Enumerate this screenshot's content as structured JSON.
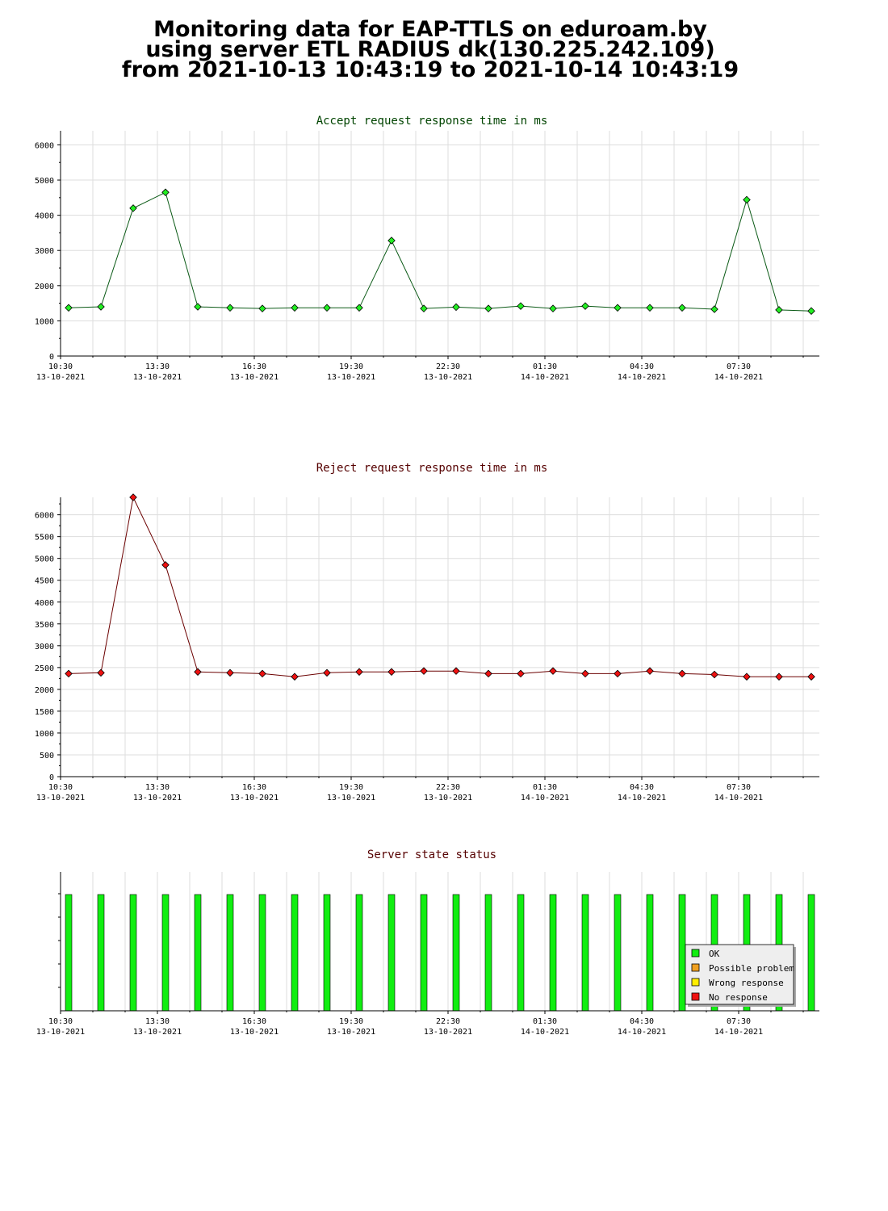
{
  "header": {
    "title_line1": "Monitoring data for EAP-TTLS on eduroam.by",
    "title_line2": "using server ETL RADIUS dk(130.225.242.109)",
    "title_line3": "from 2021-10-13 10:43:19 to 2021-10-14 10:43:19"
  },
  "colors": {
    "accept_line": "#0b5a16",
    "accept_marker": "#22ee22",
    "reject_line": "#6b0000",
    "reject_marker": "#ee1111",
    "accept_title": "#004400",
    "reject_title": "#550000",
    "grid": "#dddddd",
    "status_bar": "#11ee11"
  },
  "x_ticks": [
    {
      "time": "10:30",
      "date": "13-10-2021",
      "hour": 0
    },
    {
      "time": "13:30",
      "date": "13-10-2021",
      "hour": 3
    },
    {
      "time": "16:30",
      "date": "13-10-2021",
      "hour": 6
    },
    {
      "time": "19:30",
      "date": "13-10-2021",
      "hour": 9
    },
    {
      "time": "22:30",
      "date": "13-10-2021",
      "hour": 12
    },
    {
      "time": "01:30",
      "date": "14-10-2021",
      "hour": 15
    },
    {
      "time": "04:30",
      "date": "14-10-2021",
      "hour": 18
    },
    {
      "time": "07:30",
      "date": "14-10-2021",
      "hour": 21
    }
  ],
  "chart_data": [
    {
      "type": "line",
      "title": "Accept request response time in ms",
      "xlabel": "",
      "ylabel": "",
      "x_hours": [
        0.25,
        1.25,
        2.25,
        3.25,
        4.25,
        5.25,
        6.25,
        7.25,
        8.25,
        9.25,
        10.25,
        11.25,
        12.25,
        13.25,
        14.25,
        15.25,
        16.25,
        17.25,
        18.25,
        19.25,
        20.25,
        21.25,
        22.25,
        23.25
      ],
      "values": [
        1370,
        1400,
        4200,
        4650,
        1400,
        1370,
        1350,
        1370,
        1370,
        1370,
        3280,
        1350,
        1390,
        1350,
        1420,
        1350,
        1420,
        1370,
        1370,
        1370,
        1330,
        4440,
        1310,
        1280
      ],
      "ylim": [
        0,
        6400
      ],
      "yticks": [
        0,
        1000,
        2000,
        3000,
        4000,
        5000,
        6000
      ],
      "ytick_labels": [
        "0",
        "1000",
        "2000",
        "3000",
        "4000",
        "5000",
        "6000"
      ],
      "grid": true
    },
    {
      "type": "line",
      "title": "Reject request response time in ms",
      "xlabel": "",
      "ylabel": "",
      "x_hours": [
        0.25,
        1.25,
        2.25,
        3.25,
        4.25,
        5.25,
        6.25,
        7.25,
        8.25,
        9.25,
        10.25,
        11.25,
        12.25,
        13.25,
        14.25,
        15.25,
        16.25,
        17.25,
        18.25,
        19.25,
        20.25,
        21.25,
        22.25,
        23.25
      ],
      "values": [
        2360,
        2380,
        6400,
        4850,
        2400,
        2380,
        2360,
        2290,
        2380,
        2400,
        2400,
        2420,
        2420,
        2360,
        2360,
        2420,
        2360,
        2360,
        2420,
        2360,
        2340,
        2290,
        2290,
        2290
      ],
      "ylim": [
        0,
        6400
      ],
      "yticks": [
        0,
        500,
        1000,
        1500,
        2000,
        2500,
        3000,
        3500,
        4000,
        4500,
        5000,
        5500,
        6000
      ],
      "ytick_labels": [
        "0",
        "500",
        "1000",
        "1500",
        "2000",
        "2500",
        "3000",
        "3500",
        "4000",
        "4500",
        "5000",
        "5500",
        "6000"
      ],
      "grid": true
    },
    {
      "type": "bar",
      "title": "Server state status",
      "xlabel": "",
      "ylabel": "",
      "x_hours": [
        0.25,
        1.25,
        2.25,
        3.25,
        4.25,
        5.25,
        6.25,
        7.25,
        8.25,
        9.25,
        10.25,
        11.25,
        12.25,
        13.25,
        14.25,
        15.25,
        16.25,
        17.25,
        18.25,
        19.25,
        20.25,
        21.25,
        22.25,
        23.25
      ],
      "states": [
        "OK",
        "OK",
        "OK",
        "OK",
        "OK",
        "OK",
        "OK",
        "OK",
        "OK",
        "OK",
        "OK",
        "OK",
        "OK",
        "OK",
        "OK",
        "OK",
        "OK",
        "OK",
        "OK",
        "OK",
        "OK",
        "OK",
        "OK",
        "OK"
      ],
      "legend": {
        "position": "bottom-right",
        "entries": [
          {
            "label": "OK",
            "color": "#11ee11"
          },
          {
            "label": "Possible problem",
            "color": "#f0a020"
          },
          {
            "label": "Wrong response",
            "color": "#ffee00"
          },
          {
            "label": "No response",
            "color": "#ee1111"
          }
        ]
      }
    }
  ]
}
